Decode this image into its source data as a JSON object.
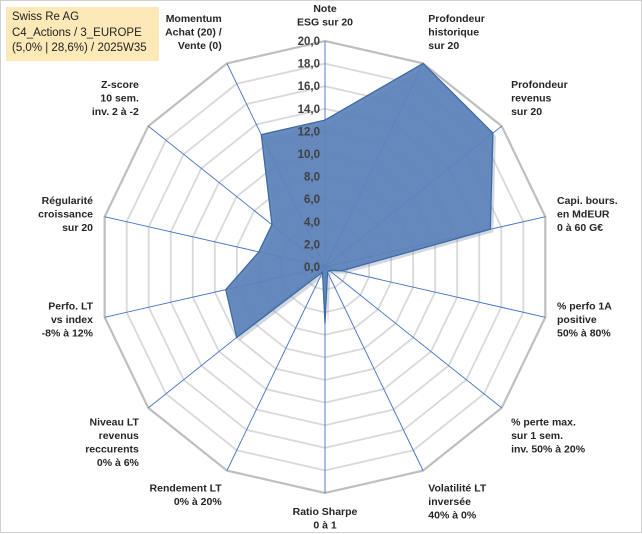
{
  "title_box": {
    "line1": "Swiss Re AG",
    "line2": "C4_Actions / 3_EUROPE",
    "line3": "(5,0% | 28,6%) / 2025W35"
  },
  "colors": {
    "fill": "#5b82b8",
    "stroke": "#3d6aa7",
    "grid": "#d9d9d9",
    "spoke": "#4472c4",
    "title_bg": "#fde9b8"
  },
  "chart_data": {
    "type": "radar",
    "r_range": [
      0,
      20
    ],
    "r_ticks": [
      "0,0",
      "2,0",
      "4,0",
      "6,0",
      "8,0",
      "10,0",
      "12,0",
      "14,0",
      "16,0",
      "18,0",
      "20,0"
    ],
    "grid": true,
    "categories": [
      [
        "Note",
        "ESG sur 20"
      ],
      [
        "Profondeur",
        "historique",
        "sur 20"
      ],
      [
        "Profondeur",
        "revenus",
        "sur 20"
      ],
      [
        "Capi. bours.",
        "en MdEUR",
        "0 à 60 G€"
      ],
      [
        "% perfo 1A",
        "positive",
        "50% à 80%"
      ],
      [
        "% perte max.",
        "sur 1 sem.",
        "inv. 50% à 20%"
      ],
      [
        "Volatilité LT",
        "inversée",
        "40% à 0%"
      ],
      [
        "Ratio Sharpe",
        "0 à 1"
      ],
      [
        "Rendement LT",
        "0% à 20%"
      ],
      [
        "Niveau LT",
        "revenus",
        "reccurents",
        "0% à 6%"
      ],
      [
        "Perfo. LT",
        "vs index",
        "-8% à 12%"
      ],
      [
        "Régularité",
        "croissance",
        "sur 20"
      ],
      [
        "Z-score",
        "10 sem.",
        "inv. 2 à -2"
      ],
      [
        "Momentum",
        "Achat (20) /",
        "Vente (0)"
      ]
    ],
    "series": [
      {
        "values": [
          13.0,
          20.0,
          19.0,
          15.0,
          1.5,
          0.5,
          0.5,
          5.0,
          0.5,
          10.0,
          9.0,
          6.0,
          6.0,
          13.0
        ]
      }
    ]
  }
}
